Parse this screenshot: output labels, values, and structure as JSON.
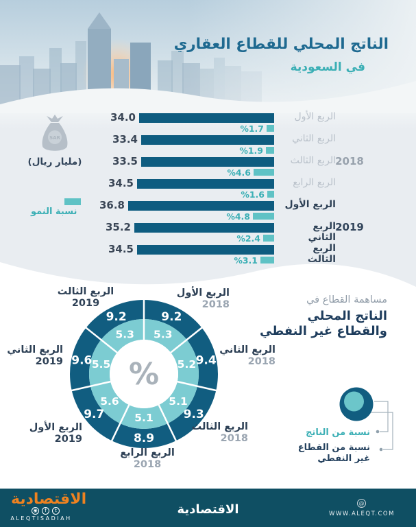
{
  "header": {
    "title": "الناتج المحلي للقطاع العقاري",
    "subtitle": "في السعودية"
  },
  "unit_badge": {
    "icon": "money-bag-icon",
    "currency_tag": "SAR",
    "label": "(مليار ريال)"
  },
  "growth_legend": {
    "label": "نسبة النمو"
  },
  "chart_data": [
    {
      "type": "bar",
      "orientation": "horizontal",
      "unit": "مليار ريال",
      "categories": [
        "الربع الأول",
        "الربع الثاني",
        "الربع الثالث",
        "الربع الرابع",
        "الربع الأول",
        "الربع الثاني",
        "الربع الثالث"
      ],
      "years": [
        "2018",
        "2018",
        "2018",
        "2018",
        "2019",
        "2019",
        "2019"
      ],
      "series": [
        {
          "name": "الناتج المحلي (مليار ريال)",
          "values": [
            34.0,
            33.4,
            33.5,
            34.5,
            36.8,
            35.2,
            34.5
          ]
        },
        {
          "name": "نسبة النمو",
          "values": [
            1.7,
            1.9,
            4.6,
            1.6,
            4.8,
            2.4,
            3.1
          ],
          "value_prefix": "%"
        }
      ],
      "year_groups": [
        {
          "year": "2018",
          "row_indexes": [
            0,
            1,
            2,
            3
          ]
        },
        {
          "year": "2019",
          "row_indexes": [
            4,
            5,
            6
          ]
        }
      ]
    },
    {
      "type": "pie",
      "subtype": "donut-two-rings",
      "center_label": "%",
      "title": "مساهمة القطاع في الناتج المحلي والقطاع غير النفطي",
      "categories": [
        "الربع الأول",
        "الربع الثاني",
        "الربع الثالث",
        "الربع الرابع",
        "الربع الأول",
        "الربع الثاني",
        "الربع الثالث"
      ],
      "years": [
        "2018",
        "2018",
        "2018",
        "2018",
        "2019",
        "2019",
        "2019"
      ],
      "series": [
        {
          "name": "نسبة من القطاع غير النفطي",
          "ring": "outer",
          "values": [
            9.2,
            9.4,
            9.3,
            8.9,
            9.7,
            9.6,
            9.2
          ]
        },
        {
          "name": "نسبة من الناتج",
          "ring": "inner",
          "values": [
            5.3,
            5.2,
            5.1,
            5.1,
            5.6,
            5.5,
            5.3
          ]
        }
      ],
      "legend_position": "right-bottom"
    }
  ],
  "contribution": {
    "intro": "مساهمة القطاع في",
    "line1": "الناتج المحلي",
    "line2": "والقطاع غير النفطي",
    "legend": [
      {
        "label": "نسبة من الناتج",
        "color": "#5fc2c5"
      },
      {
        "label_line1": "نسبة من القطاع",
        "label_line2": "غير النفطي",
        "color": "#115d80"
      }
    ]
  },
  "footer": {
    "brand_ar": "الاقتصادية",
    "brand_en": "ALEQTISADIAH",
    "center": "الاقتصادية",
    "website": "WWW.ALEQT.COM"
  },
  "colors": {
    "bar_main": "#0e5c80",
    "bar_growth": "#5fc2c5",
    "donut_outer": "#115d80",
    "donut_inner": "#7cccd2",
    "title_dark": "#1e6990",
    "teal_text": "#3bafb5",
    "footer_bg": "#0f4f63",
    "brand_orange": "#ef8220"
  }
}
